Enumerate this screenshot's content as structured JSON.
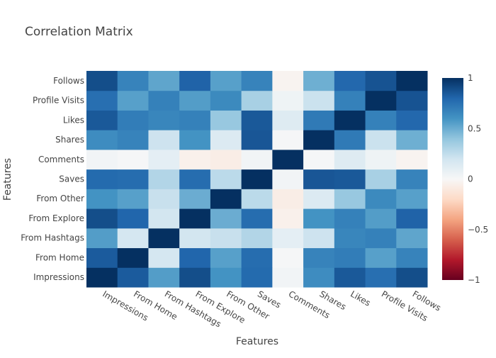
{
  "chart_data": {
    "type": "heatmap",
    "title": "Correlation Matrix",
    "xlabel": "Features",
    "ylabel": "Features",
    "x_categories": [
      "Impressions",
      "From Home",
      "From Hashtags",
      "From Explore",
      "From Other",
      "Saves",
      "Comments",
      "Shares",
      "Likes",
      "Profile Visits",
      "Follows"
    ],
    "y_categories": [
      "Impressions",
      "From Home",
      "From Hashtags",
      "From Explore",
      "From Other",
      "Saves",
      "Comments",
      "Shares",
      "Likes",
      "Profile Visits",
      "Follows"
    ],
    "z": [
      [
        1.0,
        0.84,
        0.56,
        0.89,
        0.6,
        0.78,
        0.03,
        0.63,
        0.85,
        0.76,
        0.89
      ],
      [
        0.84,
        1.0,
        0.18,
        0.8,
        0.55,
        0.77,
        0.01,
        0.67,
        0.7,
        0.55,
        0.67
      ],
      [
        0.56,
        0.18,
        1.0,
        0.19,
        0.23,
        0.3,
        0.1,
        0.21,
        0.66,
        0.68,
        0.53
      ],
      [
        0.89,
        0.8,
        0.19,
        1.0,
        0.5,
        0.77,
        -0.05,
        0.6,
        0.68,
        0.56,
        0.81
      ],
      [
        0.6,
        0.55,
        0.23,
        0.5,
        1.0,
        0.27,
        -0.07,
        0.14,
        0.38,
        0.64,
        0.55
      ],
      [
        0.78,
        0.77,
        0.3,
        0.77,
        0.27,
        1.0,
        0.03,
        0.86,
        0.85,
        0.33,
        0.67
      ],
      [
        0.03,
        0.01,
        0.1,
        -0.05,
        -0.07,
        0.03,
        1.0,
        0.01,
        0.13,
        0.05,
        -0.03
      ],
      [
        0.63,
        0.67,
        0.21,
        0.6,
        0.14,
        0.86,
        0.01,
        1.0,
        0.71,
        0.22,
        0.49
      ],
      [
        0.85,
        0.7,
        0.66,
        0.68,
        0.38,
        0.85,
        0.13,
        0.71,
        1.0,
        0.68,
        0.79
      ],
      [
        0.76,
        0.55,
        0.68,
        0.56,
        0.64,
        0.33,
        0.05,
        0.22,
        0.68,
        1.0,
        0.87
      ],
      [
        0.89,
        0.67,
        0.53,
        0.81,
        0.55,
        0.67,
        -0.03,
        0.49,
        0.79,
        0.87,
        1.0
      ]
    ],
    "zmin": -1,
    "zmax": 1,
    "colorscale": "RdBu",
    "colorbar_ticks": [
      "1",
      "0.5",
      "0",
      "−0.5",
      "−1"
    ],
    "colorbar_values": [
      1,
      0.5,
      0,
      -0.5,
      -1
    ]
  }
}
